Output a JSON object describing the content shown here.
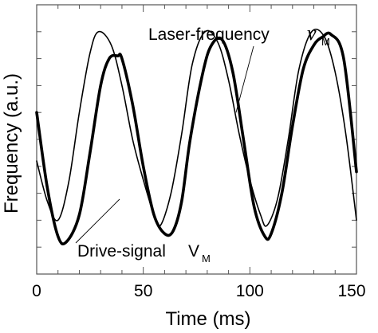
{
  "chart_data": {
    "type": "line",
    "xlabel": "Time (ms)",
    "ylabel": "Frequency (a.u.)",
    "xlim": [
      0,
      150
    ],
    "ylim": [
      0,
      1
    ],
    "xticks": [
      "0",
      "50",
      "100",
      "150"
    ],
    "grid": false,
    "legend": "none",
    "series": [
      {
        "name": "Laser-frequency",
        "symbol": "ν",
        "subscript": "M",
        "style": "thin",
        "color": "#000000",
        "x": [
          0,
          5,
          10,
          15,
          20,
          25,
          29,
          35,
          40,
          45,
          50,
          55,
          58,
          63,
          68,
          73,
          79,
          85,
          90,
          95,
          100,
          105,
          108,
          113,
          118,
          123,
          129,
          135,
          140,
          145,
          150
        ],
        "y": [
          0.42,
          0.27,
          0.2,
          0.34,
          0.6,
          0.82,
          0.9,
          0.85,
          0.7,
          0.5,
          0.35,
          0.22,
          0.18,
          0.3,
          0.52,
          0.78,
          0.9,
          0.86,
          0.72,
          0.52,
          0.35,
          0.22,
          0.18,
          0.28,
          0.5,
          0.76,
          0.9,
          0.88,
          0.75,
          0.52,
          0.2
        ]
      },
      {
        "name": "Drive-signal",
        "symbol": "V",
        "subscript": "M",
        "style": "thick",
        "color": "#000000",
        "x": [
          0,
          5,
          10,
          14,
          20,
          25,
          30,
          34,
          38,
          40,
          45,
          50,
          55,
          60,
          64,
          68,
          72,
          78,
          82,
          87,
          92,
          97,
          102,
          107,
          110,
          115,
          120,
          125,
          130,
          134,
          138,
          144,
          150
        ],
        "y": [
          0.6,
          0.32,
          0.14,
          0.12,
          0.22,
          0.45,
          0.7,
          0.8,
          0.81,
          0.8,
          0.63,
          0.4,
          0.22,
          0.15,
          0.16,
          0.27,
          0.5,
          0.75,
          0.85,
          0.87,
          0.75,
          0.5,
          0.25,
          0.14,
          0.15,
          0.3,
          0.55,
          0.76,
          0.85,
          0.88,
          0.89,
          0.8,
          0.38
        ]
      }
    ],
    "annotations": [
      {
        "text": "Laser-frequency",
        "symbol": "ν",
        "subscript": "M",
        "target_series": 0
      },
      {
        "text": "Drive-signal",
        "symbol": "V",
        "subscript": "M",
        "target_series": 1
      }
    ]
  }
}
